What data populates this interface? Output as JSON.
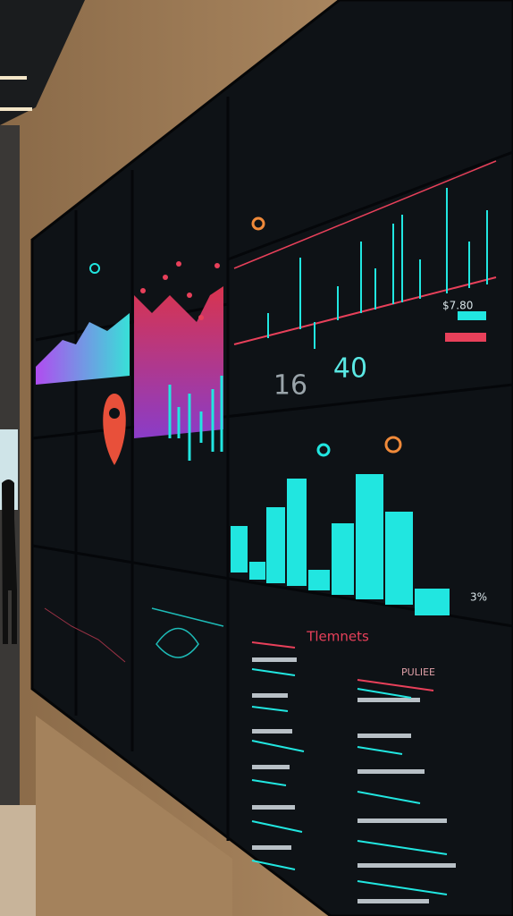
{
  "wall": {
    "kpi_large": "40",
    "kpi_small": "16",
    "price_label": "$7.80",
    "bar_panel_percent": "3%",
    "lower_panel_title": "Tlemnets",
    "lower_panel_column_head": "PULIEE"
  }
}
